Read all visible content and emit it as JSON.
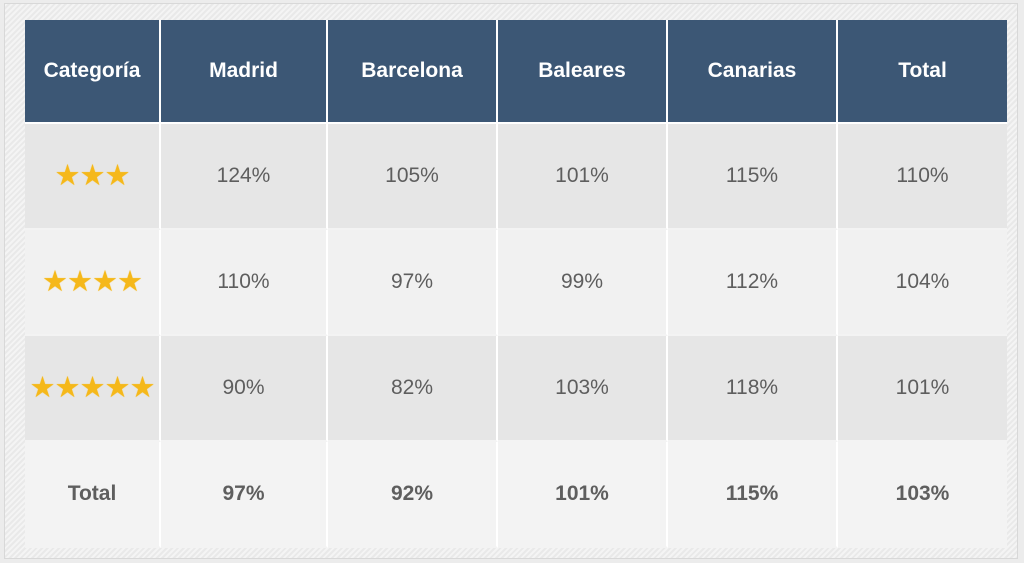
{
  "table": {
    "headers": [
      "Categoría",
      "Madrid",
      "Barcelona",
      "Baleares",
      "Canarias",
      "Total"
    ],
    "rows": [
      {
        "category_stars": 3,
        "stars_display": "★★★",
        "values": [
          "124%",
          "105%",
          "101%",
          "115%",
          "110%"
        ]
      },
      {
        "category_stars": 4,
        "stars_display": "★★★★",
        "values": [
          "110%",
          "97%",
          "99%",
          "112%",
          "104%"
        ]
      },
      {
        "category_stars": 5,
        "stars_display": "★★★★★",
        "values": [
          "90%",
          "82%",
          "103%",
          "118%",
          "101%"
        ]
      }
    ],
    "total_row": {
      "label": "Total",
      "values": [
        "97%",
        "92%",
        "101%",
        "115%",
        "103%"
      ]
    }
  },
  "colors": {
    "header_bg": "#3c5775",
    "star": "#f5b81a",
    "row_dark": "#e6e6e6",
    "row_light": "#f1f1f1"
  },
  "icons": {
    "rating": "star-icon"
  }
}
